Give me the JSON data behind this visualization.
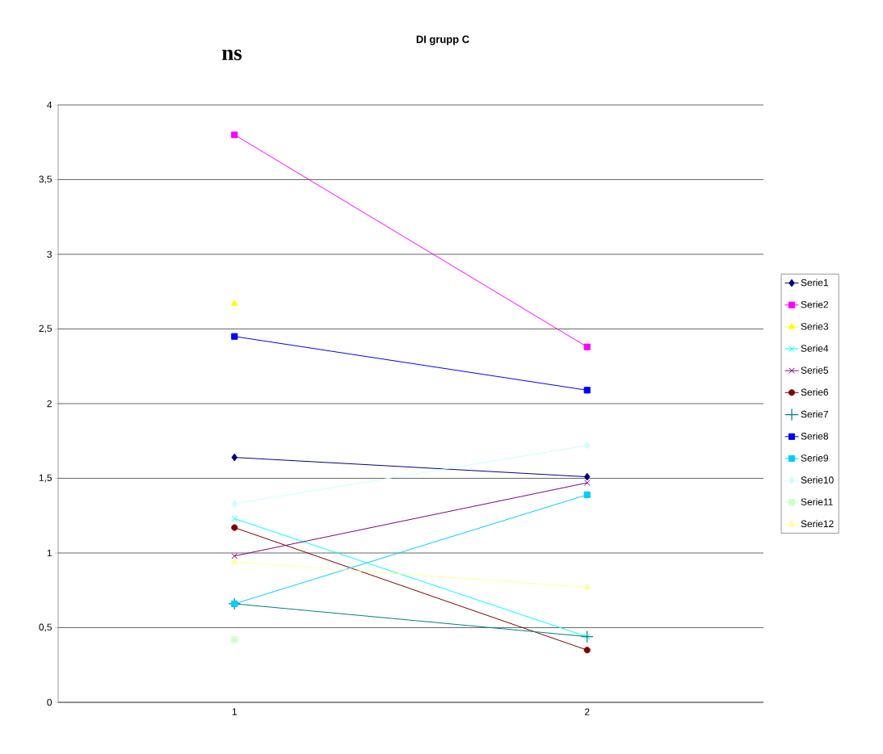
{
  "chart_data": {
    "type": "line",
    "title": "DI grupp C",
    "annotations": [
      "ns"
    ],
    "categories": [
      "1",
      "2"
    ],
    "ylim": [
      0,
      4
    ],
    "yticks": [
      0,
      {
        "value": 0.5,
        "label": "0,5"
      },
      1,
      {
        "value": 1.5,
        "label": "1,5"
      },
      2,
      {
        "value": 2.5,
        "label": "2,5"
      },
      3,
      {
        "value": 3.5,
        "label": "3,5"
      },
      4
    ],
    "grid": "y",
    "legend": "right",
    "series": [
      {
        "name": "Serie1",
        "color": "#000080",
        "marker": "diamond",
        "values": [
          1.64,
          1.51
        ]
      },
      {
        "name": "Serie2",
        "color": "#ff00ff",
        "marker": "square",
        "values": [
          3.8,
          2.38
        ]
      },
      {
        "name": "Serie3",
        "color": "#ffff00",
        "marker": "triangle",
        "values": [
          2.67,
          null
        ]
      },
      {
        "name": "Serie4",
        "color": "#00ffff",
        "marker": "cross",
        "values": [
          1.23,
          0.44
        ]
      },
      {
        "name": "Serie5",
        "color": "#800080",
        "marker": "cross",
        "values": [
          0.98,
          1.47
        ]
      },
      {
        "name": "Serie6",
        "color": "#800000",
        "marker": "circle",
        "values": [
          1.17,
          0.35
        ]
      },
      {
        "name": "Serie7",
        "color": "#008080",
        "marker": "plus",
        "values": [
          0.66,
          0.44
        ]
      },
      {
        "name": "Serie8",
        "color": "#0000ff",
        "marker": "square",
        "values": [
          2.45,
          2.09
        ]
      },
      {
        "name": "Serie9",
        "color": "#00ccff",
        "marker": "square",
        "values": [
          0.66,
          1.39
        ]
      },
      {
        "name": "Serie10",
        "color": "#ccffff",
        "marker": "diamond",
        "values": [
          1.33,
          1.72
        ]
      },
      {
        "name": "Serie11",
        "color": "#ccffcc",
        "marker": "square",
        "values": [
          0.42,
          null
        ]
      },
      {
        "name": "Serie12",
        "color": "#ffff99",
        "marker": "triangle",
        "values": [
          0.94,
          0.77
        ]
      }
    ]
  }
}
